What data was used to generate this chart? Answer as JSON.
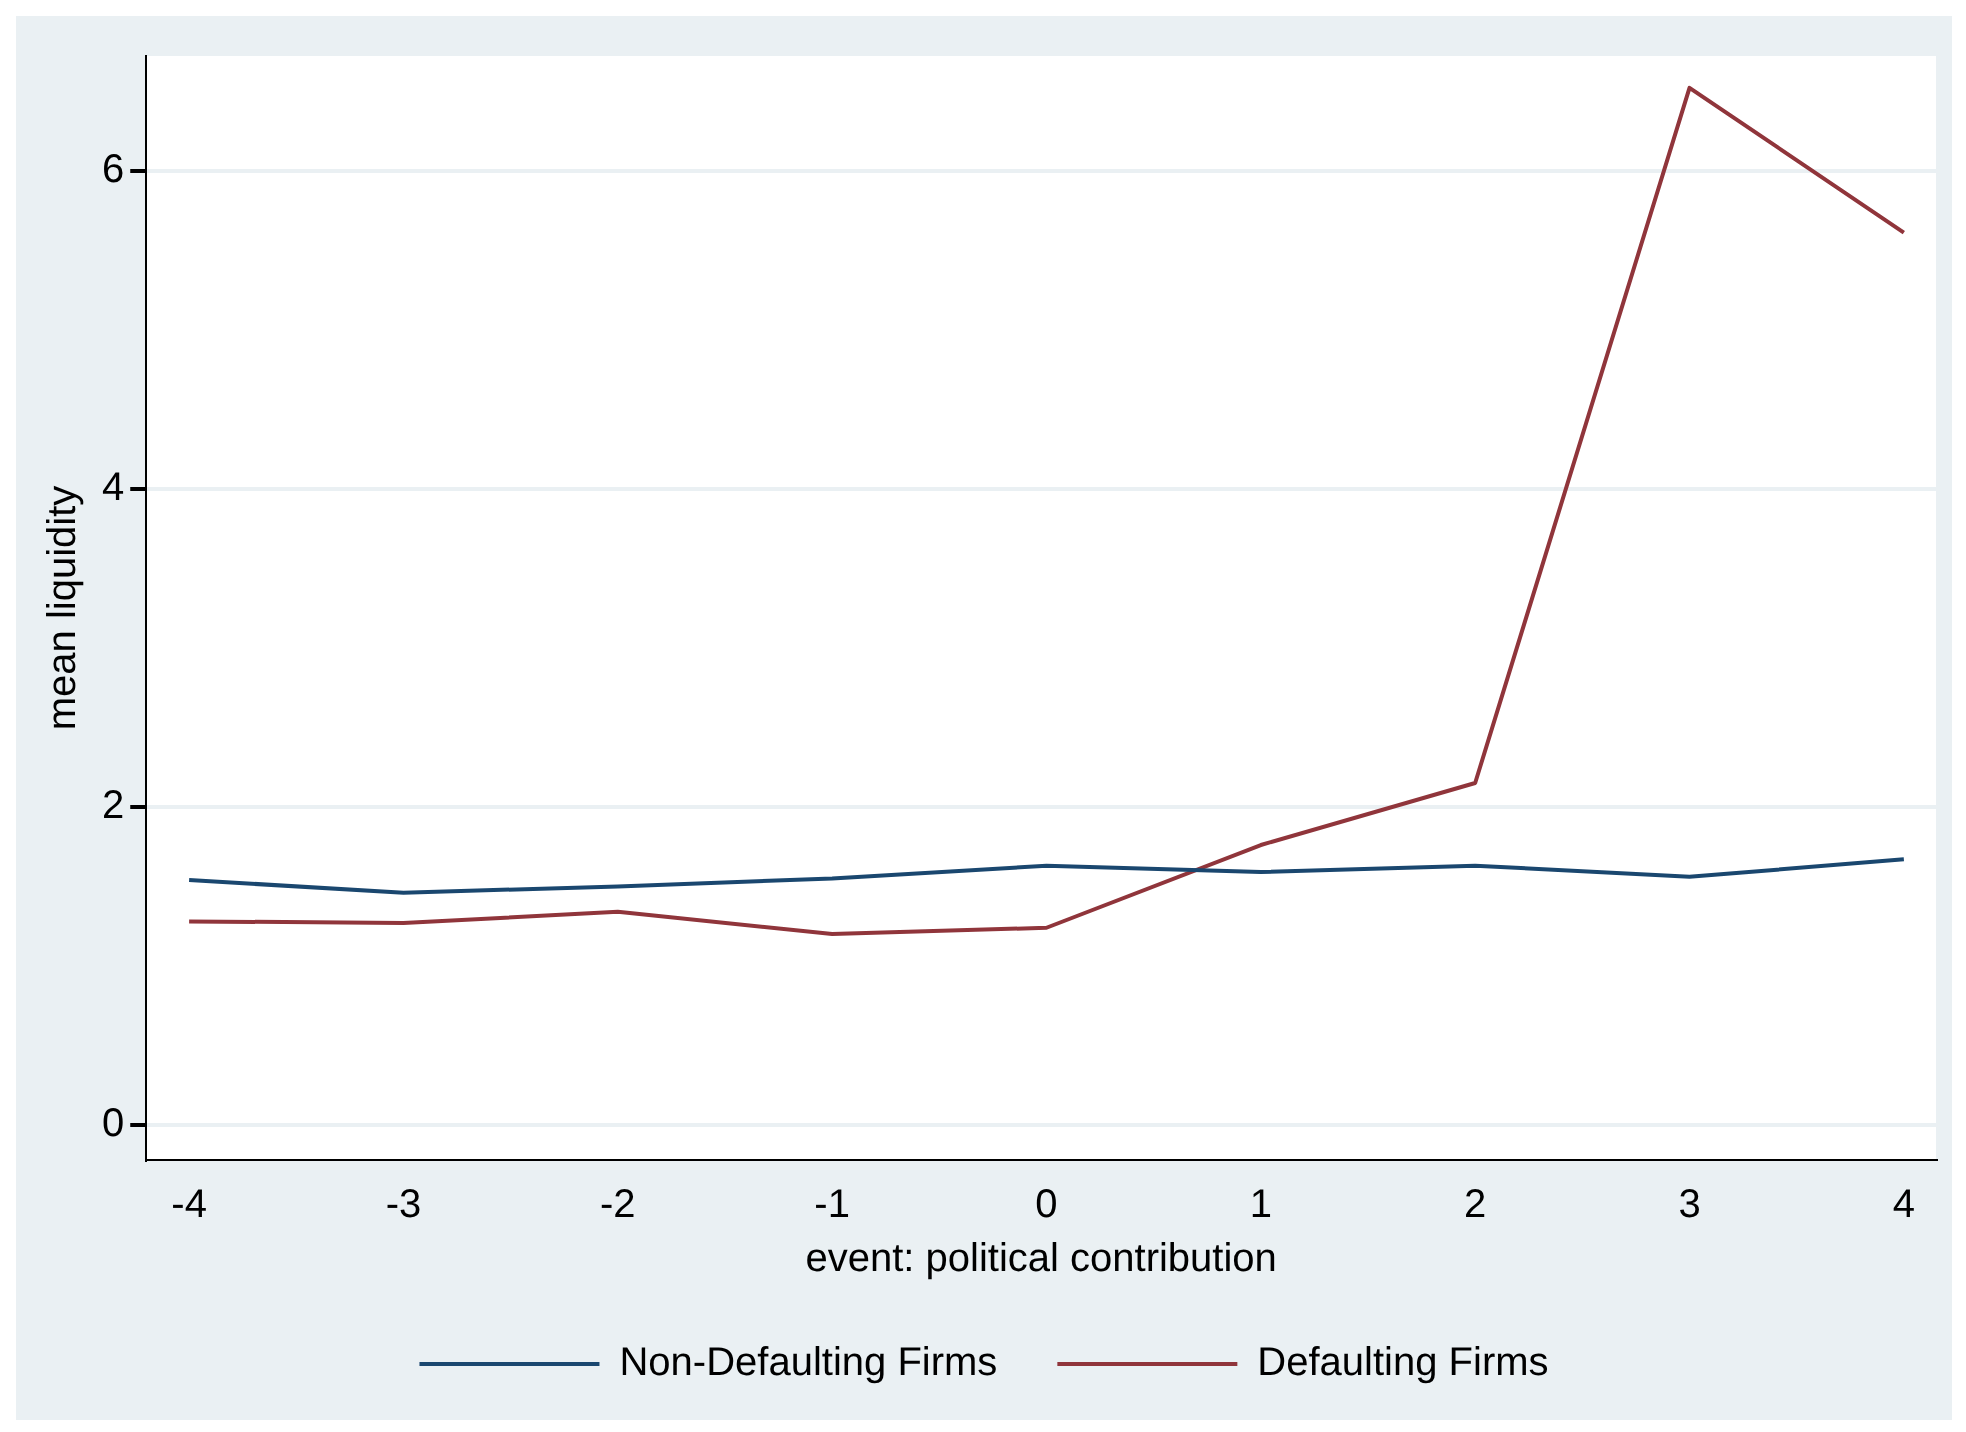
{
  "chart_data": {
    "type": "line",
    "xlabel": "event: political contribution",
    "ylabel": "mean liquidity",
    "x": [
      -4,
      -3,
      -2,
      -1,
      0,
      1,
      2,
      3,
      4
    ],
    "series": [
      {
        "name": "Non-Defaulting Firms",
        "color": "#1a476f",
        "values": [
          1.54,
          1.46,
          1.5,
          1.55,
          1.63,
          1.59,
          1.63,
          1.56,
          1.67
        ]
      },
      {
        "name": "Defaulting Firms",
        "color": "#90353b",
        "values": [
          1.28,
          1.27,
          1.34,
          1.2,
          1.24,
          1.76,
          2.15,
          6.52,
          5.61
        ]
      }
    ],
    "xlim": [
      -4.2,
      4.15
    ],
    "xticks": [
      -4,
      -3,
      -2,
      -1,
      0,
      1,
      2,
      3,
      4
    ],
    "ylim": [
      -0.22,
      6.72
    ],
    "yticks": [
      0,
      2,
      4,
      6
    ],
    "grid": "y",
    "legend": "bottom",
    "marker": "none",
    "line_style": "solid"
  }
}
